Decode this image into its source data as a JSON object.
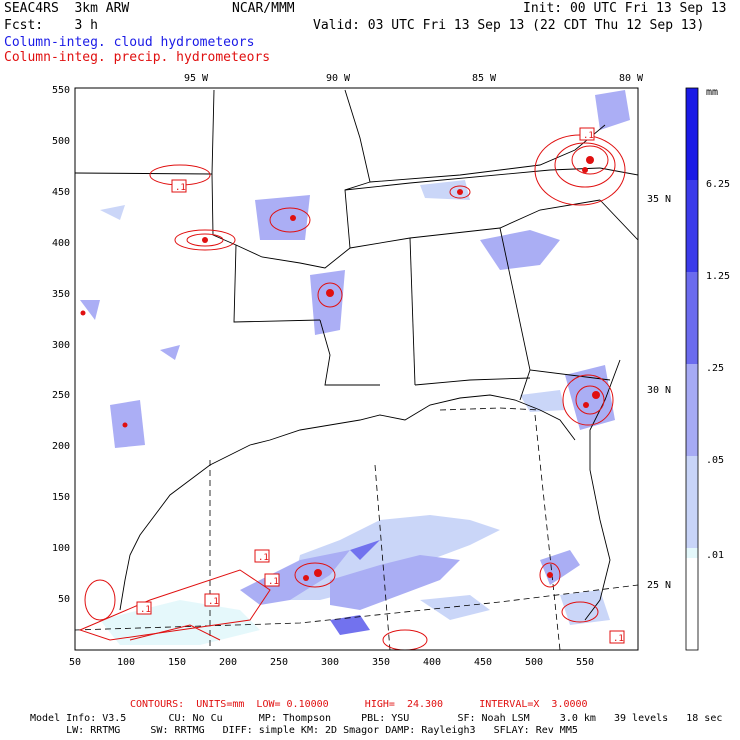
{
  "header": {
    "model": "SEAC4RS  3km ARW",
    "org": "NCAR/MMM",
    "init": "Init: 00 UTC Fri 13 Sep 13",
    "fcst": "Fcst:    3 h",
    "valid": "Valid: 03 UTC Fri 13 Sep 13 (22 CDT Thu 12 Sep 13)",
    "cloud_label": "Column-integ. cloud hydrometeors",
    "precip_label": "Column-integ. precip. hydrometeors"
  },
  "axes": {
    "lon_labels": [
      "95 W",
      "90 W",
      "85 W",
      "80 W"
    ],
    "lat_labels": [
      "35 N",
      "30 N",
      "25 N"
    ],
    "x_ticks": [
      "50",
      "100",
      "150",
      "200",
      "250",
      "300",
      "350",
      "400",
      "450",
      "500",
      "550"
    ],
    "y_ticks": [
      "550",
      "500",
      "450",
      "400",
      "350",
      "300",
      "250",
      "200",
      "150",
      "100",
      "50"
    ]
  },
  "colorbar": {
    "unit": "mm",
    "labels": [
      "6.25",
      "1.25",
      ".25",
      ".05",
      ".01"
    ],
    "colors": [
      "#1a1ae6",
      "#3b3bea",
      "#6b6bee",
      "#a6aaf4",
      "#c8d4f8",
      "#e4f8fb",
      "#ffffff"
    ]
  },
  "contour_box_label": ".1",
  "footer": {
    "contours": "CONTOURS:  UNITS=mm  LOW= 0.10000      HIGH=  24.300      INTERVAL=X  3.0000",
    "line1": "Model Info: V3.5       CU: No Cu      MP: Thompson     PBL: YSU        SF: Noah LSM     3.0 km   39 levels   18 sec",
    "line2": "      LW: RRTMG     SW: RRTMG   DIFF: simple KM: 2D Smagor DAMP: Rayleigh3   SFLAY: Rev MM5"
  },
  "colors": {
    "cloud": "#1a1ae6",
    "precip": "#e01010"
  }
}
